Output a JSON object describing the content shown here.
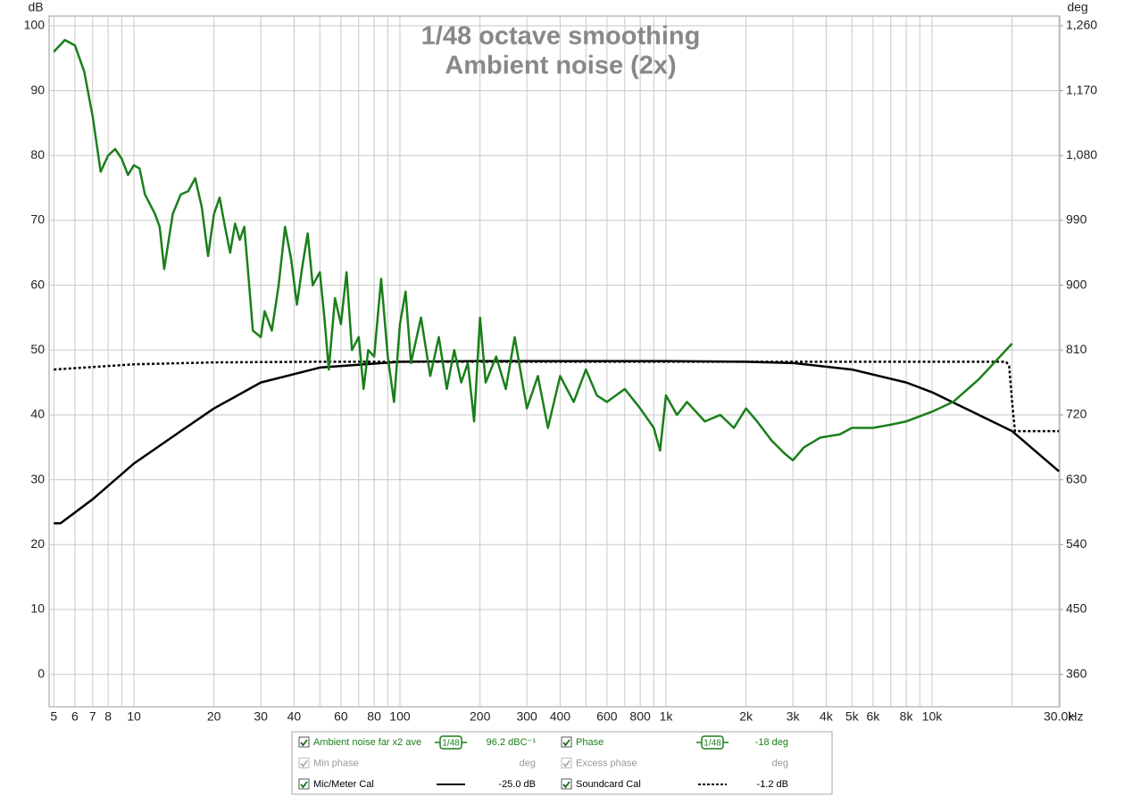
{
  "chart_data": {
    "type": "line",
    "title": [
      "1/48 octave smoothing",
      "Ambient noise (2x)"
    ],
    "y_label": "dB",
    "y2_label": "deg",
    "x_unit": "Hz",
    "log_x": true,
    "grid": true,
    "xlim": [
      4.8,
      30200
    ],
    "ylim": [
      -5,
      101.5
    ],
    "y2lim": [
      315,
      1273.5
    ],
    "xticks": [
      5,
      6,
      7,
      8,
      10,
      20,
      30,
      40,
      60,
      80,
      100,
      200,
      300,
      400,
      600,
      800,
      {
        "value": 1000,
        "label": "1k"
      },
      {
        "value": 2000,
        "label": "2k"
      },
      {
        "value": 3000,
        "label": "3k"
      },
      {
        "value": 4000,
        "label": "4k"
      },
      {
        "value": 5000,
        "label": "5k"
      },
      {
        "value": 6000,
        "label": "6k"
      },
      {
        "value": 8000,
        "label": "8k"
      },
      {
        "value": 10000,
        "label": "10k"
      },
      {
        "value": 30000,
        "label": "30.0k"
      }
    ],
    "xminor": [
      9,
      50,
      70,
      90,
      500,
      700,
      900,
      7000,
      9000,
      20000
    ],
    "yticks": [
      0,
      10,
      20,
      30,
      40,
      50,
      60,
      70,
      80,
      90,
      100
    ],
    "y2ticks": [
      360,
      450,
      540,
      630,
      720,
      810,
      900,
      990,
      {
        "value": 1080,
        "label": "1,080"
      },
      {
        "value": 1170,
        "label": "1,170"
      },
      {
        "value": 1260,
        "label": "1,260"
      }
    ],
    "series": [
      {
        "name": "Ambient noise far x2 ave",
        "color": "#1a7f1a",
        "style": "solid",
        "smoothing": "1/48",
        "readout": "96.2 dBC⁻¹",
        "x": [
          5,
          5.5,
          6,
          6.5,
          7,
          7.5,
          8,
          8.5,
          9,
          9.5,
          10,
          10.5,
          11,
          12,
          12.5,
          13,
          14,
          15,
          16,
          17,
          18,
          19,
          20,
          21,
          22,
          23,
          24,
          25,
          26,
          27,
          28,
          30,
          31,
          33,
          35,
          37,
          39,
          41,
          43,
          45,
          47,
          50,
          52,
          54,
          57,
          60,
          63,
          66,
          70,
          73,
          76,
          80,
          85,
          90,
          95,
          100,
          105,
          110,
          120,
          130,
          140,
          150,
          160,
          170,
          180,
          190,
          200,
          210,
          230,
          250,
          270,
          300,
          330,
          360,
          400,
          450,
          500,
          550,
          600,
          700,
          800,
          900,
          950,
          1000,
          1100,
          1200,
          1400,
          1600,
          1800,
          2000,
          2200,
          2500,
          2800,
          3000,
          3300,
          3800,
          4500,
          5000,
          6000,
          7000,
          8000,
          10000,
          12000,
          15000,
          18000,
          20000
        ],
        "values": [
          96,
          97.8,
          97,
          93,
          86,
          77.5,
          80,
          81,
          79.5,
          77,
          78.5,
          78,
          74,
          71,
          69,
          62.5,
          71,
          74,
          74.5,
          76.5,
          72,
          64.5,
          71,
          73.5,
          69,
          65,
          69.5,
          67,
          69,
          61,
          53,
          52,
          56,
          53,
          60,
          69,
          64,
          57,
          63,
          68,
          60,
          62,
          55,
          47,
          58,
          54,
          62,
          50,
          52,
          44,
          50,
          49,
          61,
          49,
          42,
          54,
          59,
          48,
          55,
          46,
          52,
          44,
          50,
          45,
          48,
          39,
          55,
          45,
          49,
          44,
          52,
          41,
          46,
          38,
          46,
          42,
          47,
          43,
          42,
          44,
          41,
          38,
          34.5,
          43,
          40,
          42,
          39,
          40,
          38,
          41,
          39,
          36,
          34,
          33,
          35,
          36.5,
          37,
          38,
          38,
          38.5,
          39,
          40.5,
          42,
          45.5,
          49,
          51
        ]
      },
      {
        "name": "Mic/Meter Cal",
        "color": "#000000",
        "style": "solid",
        "readout": "-25.0 dB",
        "x": [
          5,
          5.3,
          7,
          10,
          15,
          20,
          30,
          50,
          100,
          200,
          1000,
          2000,
          3000,
          5000,
          8000,
          10000,
          15000,
          20000,
          30000
        ],
        "values": [
          23.3,
          23.3,
          27,
          32.5,
          37.5,
          41,
          45,
          47.3,
          48.2,
          48.3,
          48.3,
          48.2,
          48,
          47,
          45,
          43.5,
          40,
          37.5,
          31.3
        ]
      },
      {
        "name": "Soundcard Cal",
        "color": "#000000",
        "style": "dotted",
        "readout": "-1.2 dB",
        "x": [
          5,
          10,
          20,
          50,
          1000,
          19000,
          19500,
          20000,
          20500,
          30000
        ],
        "values": [
          47,
          47.8,
          48.1,
          48.2,
          48.2,
          48.2,
          47.5,
          42,
          37.5,
          37.5
        ]
      }
    ],
    "other_traces": [
      {
        "name": "Phase",
        "color": "#1a7f1a",
        "smoothing": "1/48",
        "readout": "-18 deg",
        "enabled": true
      },
      {
        "name": "Min phase",
        "color": "#999999",
        "readout": "deg",
        "enabled": false
      },
      {
        "name": "Excess phase",
        "color": "#999999",
        "readout": "deg",
        "enabled": false
      }
    ]
  }
}
